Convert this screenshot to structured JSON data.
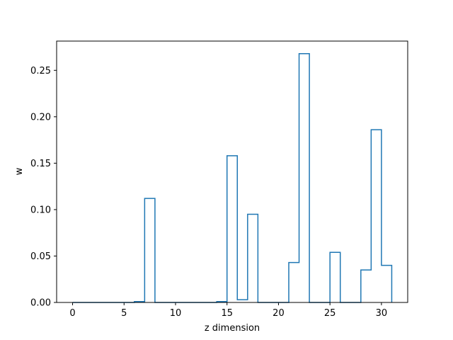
{
  "chart_data": {
    "type": "line",
    "subtype": "step-histogram",
    "xlabel": "z dimension",
    "ylabel": "w",
    "xlim": [
      -1.55,
      32.55
    ],
    "ylim": [
      0,
      0.2815
    ],
    "x_ticks": [
      0,
      5,
      10,
      15,
      20,
      25,
      30
    ],
    "y_ticks": [
      0.0,
      0.05,
      0.1,
      0.15,
      0.2,
      0.25
    ],
    "y_tick_labels": [
      "0.00",
      "0.05",
      "0.10",
      "0.15",
      "0.20",
      "0.25"
    ],
    "bin_edges": [
      0,
      1,
      2,
      3,
      4,
      5,
      6,
      7,
      8,
      9,
      10,
      11,
      12,
      13,
      14,
      15,
      16,
      17,
      18,
      19,
      20,
      21,
      22,
      23,
      24,
      25,
      26,
      27,
      28,
      29,
      30,
      31
    ],
    "values": [
      0,
      0,
      0,
      0,
      0,
      0,
      0.001,
      0.112,
      0,
      0,
      0,
      0,
      0,
      0,
      0.001,
      0.158,
      0.003,
      0.095,
      0,
      0,
      0,
      0.043,
      0.268,
      0,
      0,
      0.054,
      0,
      0,
      0.035,
      0.186,
      0.04
    ],
    "line_color": "#1f77b4",
    "grid": false
  }
}
